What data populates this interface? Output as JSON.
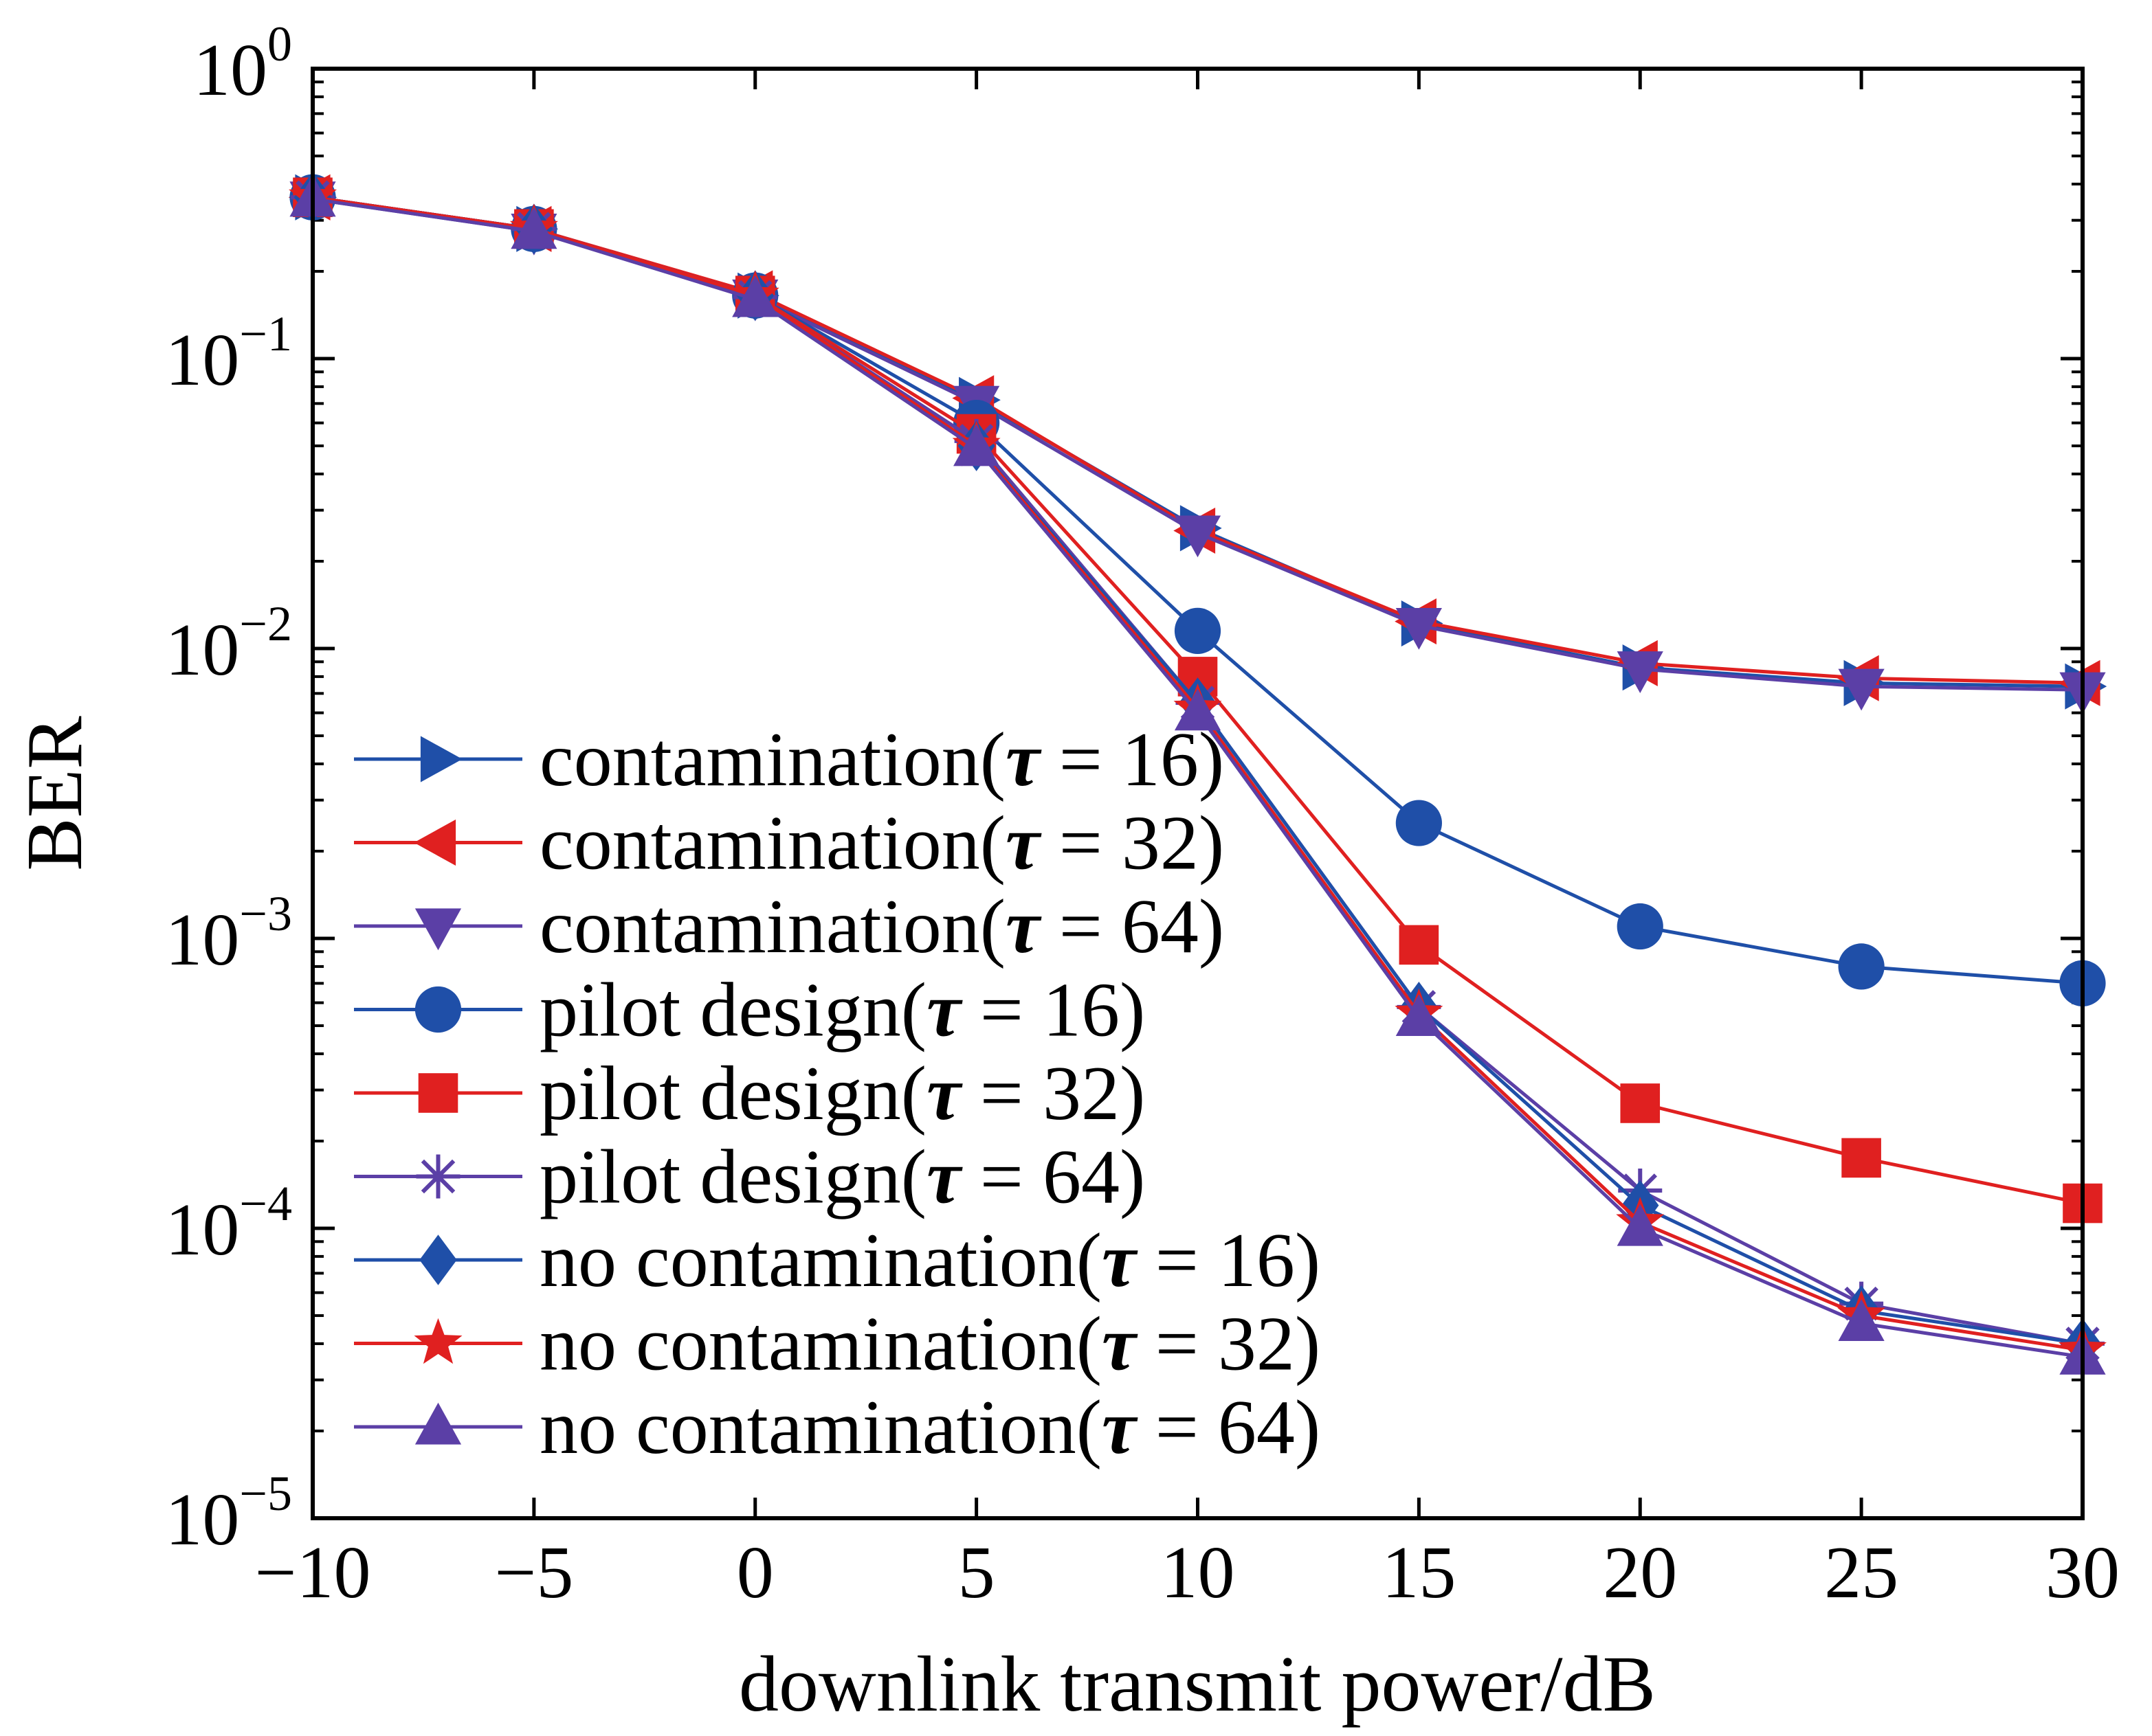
{
  "chart_data": {
    "type": "line",
    "title": "",
    "xlabel": "downlink transmit power/dB",
    "ylabel": "BER",
    "xlim": [
      -10,
      30
    ],
    "ylim": [
      1e-05,
      1
    ],
    "yscale": "log",
    "grid": false,
    "legend_position": "lower-left",
    "x": [
      -10,
      -5,
      0,
      5,
      10,
      15,
      20,
      25,
      30
    ],
    "x_ticks": [
      "−10",
      "−5",
      "0",
      "5",
      "10",
      "15",
      "20",
      "25",
      "30"
    ],
    "y_ticks": [
      {
        "base": "10",
        "exp": "0",
        "value": 1
      },
      {
        "base": "10",
        "exp": "−1",
        "value": 0.1
      },
      {
        "base": "10",
        "exp": "−2",
        "value": 0.01
      },
      {
        "base": "10",
        "exp": "−3",
        "value": 0.001
      },
      {
        "base": "10",
        "exp": "−4",
        "value": 0.0001
      },
      {
        "base": "10",
        "exp": "−5",
        "value": 1e-05
      }
    ],
    "series": [
      {
        "name": "contamination(τ = 16)",
        "prefix": "contamination(",
        "tau": "16",
        "color": "#1f4fa8",
        "marker": "triangle-right",
        "values": [
          0.36,
          0.28,
          0.165,
          0.072,
          0.026,
          0.0122,
          0.0086,
          0.0076,
          0.0074
        ]
      },
      {
        "name": "contamination(τ = 32)",
        "prefix": "contamination(",
        "tau": "32",
        "color": "#e02020",
        "marker": "triangle-left",
        "values": [
          0.36,
          0.28,
          0.168,
          0.073,
          0.0255,
          0.0124,
          0.0089,
          0.0079,
          0.0076
        ]
      },
      {
        "name": "contamination(τ = 64)",
        "prefix": "contamination(",
        "tau": "64",
        "color": "#5b3fa6",
        "marker": "triangle-down",
        "values": [
          0.355,
          0.275,
          0.163,
          0.07,
          0.025,
          0.012,
          0.0085,
          0.0074,
          0.0072
        ]
      },
      {
        "name": "pilot design(τ = 16)",
        "prefix": "pilot design(",
        "tau": "16",
        "color": "#1f4fa8",
        "marker": "circle",
        "values": [
          0.36,
          0.28,
          0.165,
          0.06,
          0.0115,
          0.0025,
          0.0011,
          0.0008,
          0.0007
        ]
      },
      {
        "name": "pilot design(τ = 32)",
        "prefix": "pilot design(",
        "tau": "32",
        "color": "#e02020",
        "marker": "square",
        "values": [
          0.36,
          0.28,
          0.165,
          0.055,
          0.008,
          0.00095,
          0.00027,
          0.000175,
          0.000122
        ]
      },
      {
        "name": "pilot design(τ = 64)",
        "prefix": "pilot design(",
        "tau": "64",
        "color": "#5b3fa6",
        "marker": "asterisk",
        "values": [
          0.36,
          0.28,
          0.163,
          0.052,
          0.0065,
          0.00058,
          0.000135,
          5.5e-05,
          4e-05
        ]
      },
      {
        "name": "no contamination(τ = 16)",
        "prefix": "no contamination(",
        "tau": "16",
        "color": "#1f4fa8",
        "marker": "diamond",
        "values": [
          0.36,
          0.28,
          0.165,
          0.05,
          0.0065,
          0.00058,
          0.00012,
          5.2e-05,
          4e-05
        ]
      },
      {
        "name": "no contamination(τ = 32)",
        "prefix": "no contamination(",
        "tau": "32",
        "color": "#e02020",
        "marker": "star",
        "values": [
          0.36,
          0.28,
          0.165,
          0.05,
          0.0062,
          0.00055,
          0.000105,
          5e-05,
          3.8e-05
        ]
      },
      {
        "name": "no contamination(τ = 64)",
        "prefix": "no contamination(",
        "tau": "64",
        "color": "#5b3fa6",
        "marker": "triangle-up",
        "values": [
          0.355,
          0.275,
          0.16,
          0.049,
          0.006,
          0.00053,
          0.0001,
          4.7e-05,
          3.6e-05
        ]
      }
    ]
  }
}
